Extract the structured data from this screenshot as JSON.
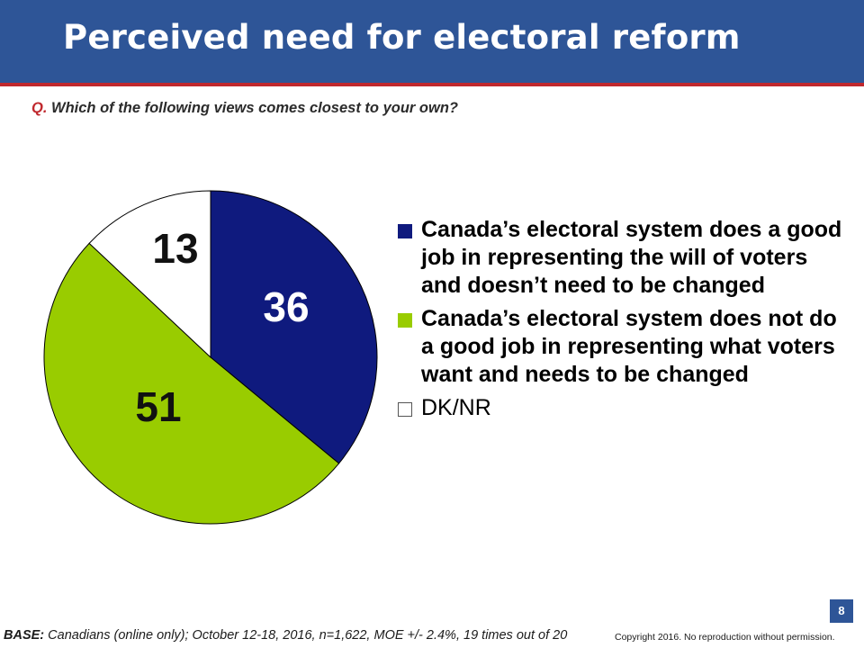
{
  "header": {
    "title": "Perceived need for electoral reform",
    "bar_color": "#2e5597",
    "accent_color": "#c0282d"
  },
  "question": {
    "prefix": "Q.",
    "text": "Which of the following views comes closest to your own?"
  },
  "chart_data": {
    "type": "pie",
    "slices": [
      {
        "label": "Canada’s electoral system does a good job in representing the will of voters and doesn’t need to be changed",
        "value": 36,
        "color": "#0f1a7e",
        "label_color": "#ffffff"
      },
      {
        "label": "Canada’s electoral system does not do a good job in representing what voters want and needs to be changed",
        "value": 51,
        "color": "#99cc00",
        "label_color": "#111111"
      },
      {
        "label": "DK/NR",
        "value": 13,
        "color": "#ffffff",
        "label_color": "#111111"
      }
    ],
    "start": "12 o'clock, clockwise",
    "legend_position": "right"
  },
  "footer": {
    "page_number": "8",
    "base_label": "BASE:",
    "base_text": "Canadians (online only); October 12-18, 2016, n=1,622, MOE +/- 2.4%, 19 times out of 20",
    "copyright": "Copyright 2016. No reproduction without permission."
  }
}
